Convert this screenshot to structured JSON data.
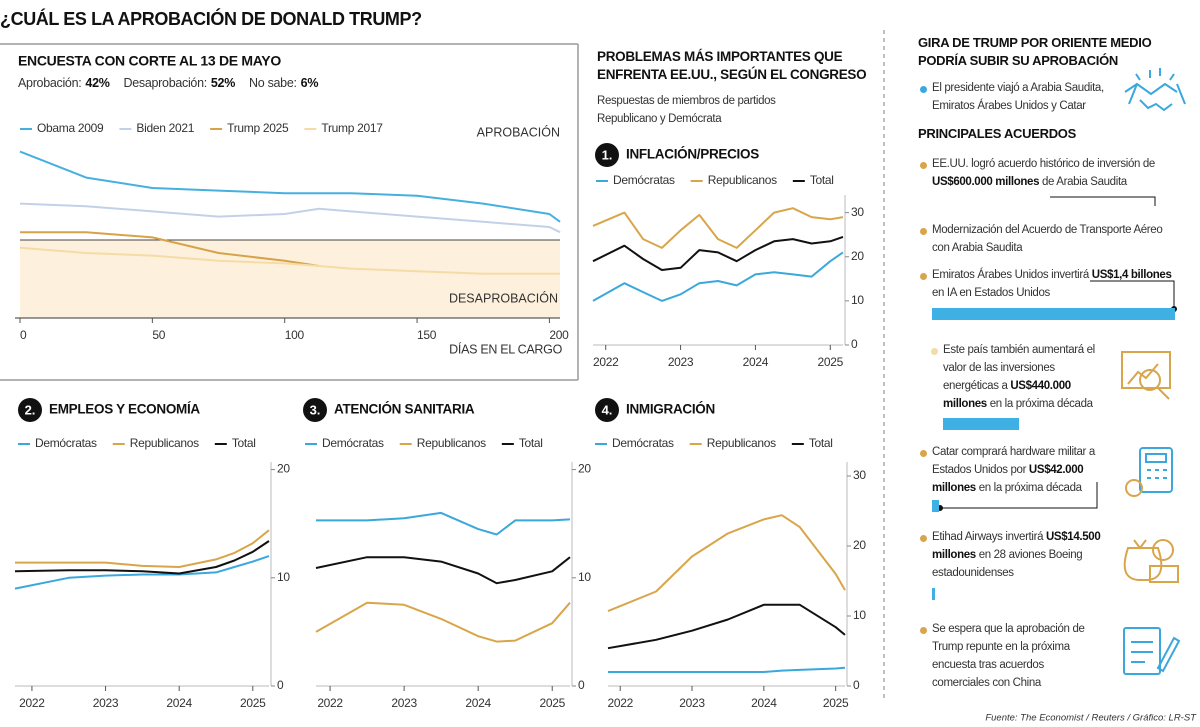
{
  "title": "¿CUÁL ES LA APROBACIÓN DE DONALD TRUMP?",
  "section": {
    "title": "PROBLEMAS MÁS IMPORTANTES QUE ENFRENTA EE.UU., SEGÚN EL CONGRESO",
    "subtitle": "Respuestas de miembros de partidos Republicano y Demócrata"
  },
  "chart_data": [
    {
      "type": "line",
      "title": "ENCUESTA CON CORTE AL 13 DE MAYO",
      "summary": [
        {
          "label": "Aprobación:",
          "value": "42%"
        },
        {
          "label": "Desaprobación:",
          "value": "52%"
        },
        {
          "label": "No sabe:",
          "value": "6%"
        }
      ],
      "annotations": [
        "APROBACIÓN",
        "DESAPROBACIÓN"
      ],
      "xlabel": "DÍAS EN EL CARGO",
      "reference_line": 50,
      "reference_fill": "#fdf0dc",
      "x": [
        0,
        25,
        50,
        75,
        100,
        113,
        125,
        150,
        175,
        200,
        204
      ],
      "xlim": [
        0,
        204
      ],
      "xticks": [
        0,
        50,
        100,
        150,
        200
      ],
      "ylim": [
        35,
        70
      ],
      "series": [
        {
          "name": "Obama 2009",
          "color": "#45b0e0",
          "values": [
            67,
            62,
            60,
            59.5,
            59,
            59,
            59,
            58.5,
            57,
            55,
            53.5
          ]
        },
        {
          "name": "Biden 2021",
          "color": "#c3d1e8",
          "values": [
            57,
            56.5,
            55.5,
            54.5,
            55,
            56,
            55.5,
            54.5,
            53.5,
            52.5,
            51.5
          ]
        },
        {
          "name": "Trump 2025",
          "color": "#d6a24a",
          "values": [
            51.5,
            51.5,
            50.5,
            47.5,
            46,
            45,
            null,
            null,
            null,
            null,
            null
          ]
        },
        {
          "name": "Trump 2017",
          "color": "#f5dca6",
          "values": [
            48.5,
            47.5,
            47,
            46,
            45.5,
            45,
            44.5,
            44,
            43.5,
            43.5,
            43.5
          ]
        }
      ]
    },
    {
      "type": "line",
      "number": "1.",
      "title": "INFLACIÓN/PRECIOS",
      "x": [
        2021.83,
        2022.25,
        2022.5,
        2022.75,
        2023.0,
        2023.25,
        2023.5,
        2023.75,
        2024.0,
        2024.25,
        2024.5,
        2024.75,
        2025.0,
        2025.17
      ],
      "xlim": [
        2021.83,
        2025.17
      ],
      "xticks": [
        2022,
        2023,
        2024,
        2025
      ],
      "ylim": [
        0,
        34
      ],
      "yticks": [
        0,
        10,
        20,
        30
      ],
      "series": [
        {
          "name": "Demócratas",
          "color": "#3aa8dc",
          "values": [
            10,
            14,
            12,
            10,
            11.5,
            14,
            14.5,
            13.5,
            16,
            16.5,
            16,
            15.5,
            19,
            21
          ]
        },
        {
          "name": "Republicanos",
          "color": "#d9a54a",
          "values": [
            27,
            30,
            24,
            22,
            26,
            29.5,
            24,
            22,
            26,
            30,
            31,
            29,
            28.5,
            29
          ]
        },
        {
          "name": "Total",
          "color": "#111111",
          "values": [
            19,
            22.5,
            19.5,
            17,
            17.5,
            21.5,
            21,
            19,
            21.5,
            23.5,
            24,
            23,
            23.5,
            24.5
          ]
        }
      ]
    },
    {
      "type": "line",
      "number": "2.",
      "title": "EMPLEOS Y ECONOMÍA",
      "x": [
        2021.77,
        2022.5,
        2023.0,
        2023.5,
        2024.0,
        2024.5,
        2024.75,
        2025.0,
        2025.22
      ],
      "xlim": [
        2021.77,
        2025.22
      ],
      "xticks": [
        2022,
        2023,
        2024,
        2025
      ],
      "ylim": [
        0,
        20.7
      ],
      "yticks": [
        0,
        10,
        20
      ],
      "series": [
        {
          "name": "Demócratas",
          "color": "#3aa8dc",
          "values": [
            9,
            10,
            10.2,
            10.3,
            10.3,
            10.5,
            11,
            11.5,
            12
          ]
        },
        {
          "name": "Republicanos",
          "color": "#d9a54a",
          "values": [
            11.4,
            11.4,
            11.4,
            11.1,
            11,
            11.7,
            12.3,
            13.2,
            14.4
          ]
        },
        {
          "name": "Total",
          "color": "#111111",
          "values": [
            10.6,
            10.7,
            10.7,
            10.6,
            10.4,
            11,
            11.6,
            12.4,
            13.4
          ]
        }
      ]
    },
    {
      "type": "line",
      "number": "3.",
      "title": "ATENCIÓN SANITARIA",
      "x": [
        2021.81,
        2022.5,
        2023.0,
        2023.5,
        2024.0,
        2024.25,
        2024.5,
        2025.0,
        2025.24
      ],
      "xlim": [
        2021.81,
        2025.24
      ],
      "xticks": [
        2022,
        2023,
        2024,
        2025
      ],
      "ylim": [
        0,
        20.7
      ],
      "yticks": [
        0,
        10,
        20
      ],
      "series": [
        {
          "name": "Demócratas",
          "color": "#3aa8dc",
          "values": [
            15.3,
            15.3,
            15.5,
            16,
            14.5,
            14,
            15.3,
            15.3,
            15.4
          ]
        },
        {
          "name": "Republicanos",
          "color": "#d9a54a",
          "values": [
            5,
            7.7,
            7.5,
            6.2,
            4.6,
            4.1,
            4.2,
            5.8,
            7.7
          ]
        },
        {
          "name": "Total",
          "color": "#111111",
          "values": [
            10.9,
            11.9,
            11.9,
            11.5,
            10.4,
            9.5,
            9.8,
            10.6,
            11.9
          ]
        }
      ]
    },
    {
      "type": "line",
      "number": "4.",
      "title": "INMIGRACIÓN",
      "x": [
        2021.83,
        2022.5,
        2023.0,
        2023.5,
        2024.0,
        2024.25,
        2024.5,
        2025.0,
        2025.13
      ],
      "xlim": [
        2021.83,
        2025.13
      ],
      "xticks": [
        2022,
        2023,
        2024,
        2025
      ],
      "ylim": [
        0,
        32
      ],
      "yticks": [
        0,
        10,
        20,
        30
      ],
      "series": [
        {
          "name": "Demócratas",
          "color": "#3aa8dc",
          "values": [
            2,
            2,
            2,
            2,
            2,
            2.2,
            2.3,
            2.5,
            2.6
          ]
        },
        {
          "name": "Republicanos",
          "color": "#d9a54a",
          "values": [
            10.7,
            13.5,
            18.5,
            21.8,
            23.8,
            24.4,
            22.7,
            16,
            13.7
          ]
        },
        {
          "name": "Total",
          "color": "#111111",
          "values": [
            5.4,
            6.6,
            7.9,
            9.5,
            11.6,
            11.6,
            11.6,
            8.4,
            7.3
          ]
        }
      ]
    }
  ],
  "sidebar": {
    "title": "GIRA DE TRUMP POR ORIENTE MEDIO PODRÍA SUBIR SU APROBACIÓN",
    "intro": "El presidente viajó a Arabia Saudita, Emiratos Árabes Unidos y Catar",
    "intro_bullet": "#3aa8dc",
    "subtitle": "PRINCIPALES ACUERDOS",
    "bar_color": "#3fb0e3",
    "items": [
      {
        "bullet": "#d9a54a",
        "segments": [
          {
            "text": "EE.UU. logró acuerdo histórico de inversión de "
          },
          {
            "text": "US$600.000 millones",
            "bold": true
          },
          {
            "text": " de Arabia Saudita"
          }
        ]
      },
      {
        "bullet": "#d9a54a",
        "segments": [
          {
            "text": "Modernización del Acuerdo de Transporte Aéreo con Arabia Saudita"
          }
        ]
      },
      {
        "bullet": "#d9a54a",
        "value": 1400000,
        "segments": [
          {
            "text": "Emiratos Árabes Unidos invertirá "
          },
          {
            "text": "US$1,4 billones",
            "bold": true
          },
          {
            "text": " en IA en Estados Unidos"
          }
        ]
      },
      {
        "bullet": "#f5dca6",
        "value": 440000,
        "segments": [
          {
            "text": "Este país también aumentará el valor de las inversiones energéticas a "
          },
          {
            "text": "US$440.000 millones",
            "bold": true
          },
          {
            "text": " en la próxima década"
          }
        ]
      },
      {
        "bullet": "#d9a54a",
        "value": 42000,
        "segments": [
          {
            "text": "Catar comprará hardware militar a Estados Unidos por "
          },
          {
            "text": "US$42.000 millones",
            "bold": true
          },
          {
            "text": " en la próxima década"
          }
        ]
      },
      {
        "bullet": "#d9a54a",
        "value": 14500,
        "segments": [
          {
            "text": "Etihad Airways invertirá "
          },
          {
            "text": "US$14.500 millones",
            "bold": true
          },
          {
            "text": " en 28 aviones Boeing estadounidenses"
          }
        ]
      },
      {
        "bullet": "#d9a54a",
        "segments": [
          {
            "text": "Se espera que la aprobación de Trump repunte en la próxima encuesta tras acuerdos comerciales con China"
          }
        ]
      }
    ]
  },
  "source": "Fuente: The Economist / Reuters / Gráfico: LR-ST"
}
